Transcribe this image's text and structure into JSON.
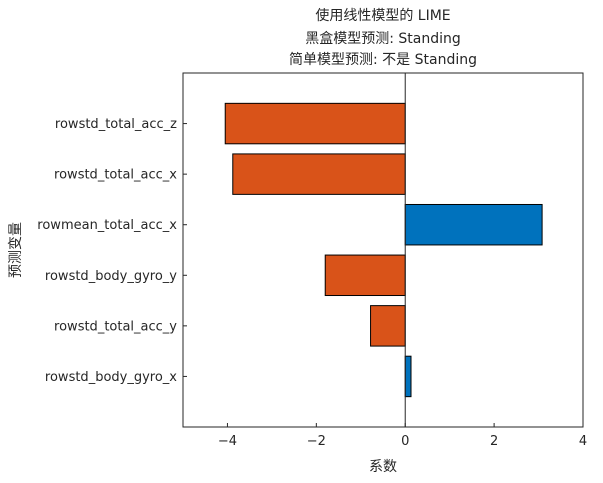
{
  "chart_data": {
    "type": "bar",
    "orientation": "horizontal",
    "title": [
      "使用线性模型的 LIME",
      "黑盒模型预测: Standing",
      "简单模型预测: 不是 Standing"
    ],
    "xlabel": "系数",
    "ylabel": "预测变量",
    "categories": [
      "rowstd_total_acc_z",
      "rowstd_total_acc_x",
      "rowmean_total_acc_x",
      "rowstd_body_gyro_y",
      "rowstd_total_acc_y",
      "rowstd_body_gyro_x"
    ],
    "values": [
      -4.05,
      -3.88,
      3.08,
      -1.8,
      -0.78,
      0.13
    ],
    "xlim": [
      -5,
      4
    ],
    "xticks": [
      -4,
      -2,
      0,
      2,
      4
    ],
    "grid": false,
    "legend": "none",
    "colors": {
      "positive": "#0072BD",
      "negative": "#D95319",
      "edge": "#000000",
      "axis": "#262626"
    }
  }
}
